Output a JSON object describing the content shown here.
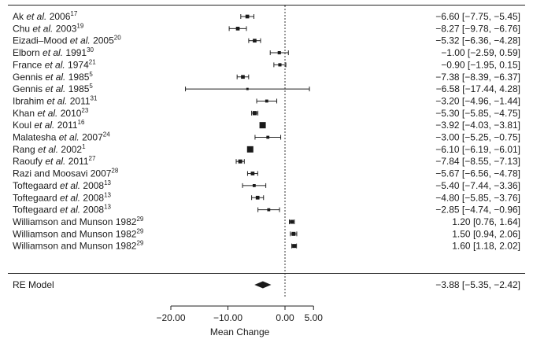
{
  "chart_data": {
    "type": "forest",
    "xlabel": "Mean Change",
    "xlim": [
      -20,
      5
    ],
    "xticks": [
      -20,
      -10,
      0,
      5
    ],
    "xtick_labels": [
      "−20.00",
      "−10.00",
      "0.00",
      "5.00"
    ],
    "reference_line": 0,
    "studies": [
      {
        "author": "Ak",
        "etal": true,
        "year": "2006",
        "ref": "17",
        "estimate": -6.6,
        "lower": -7.75,
        "upper": -5.45,
        "ci_text": "−6.60 [−7.75, −5.45]",
        "weight": 0.45
      },
      {
        "author": "Chu",
        "etal": true,
        "year": "2003",
        "ref": "19",
        "estimate": -8.27,
        "lower": -9.78,
        "upper": -6.76,
        "ci_text": "−8.27 [−9.78, −6.76]",
        "weight": 0.45
      },
      {
        "author": "Eizadi–Mood",
        "etal": true,
        "year": "2005",
        "ref": "20",
        "estimate": -5.32,
        "lower": -6.36,
        "upper": -4.28,
        "ci_text": "−5.32 [−6.36, −4.28]",
        "weight": 0.45
      },
      {
        "author": "Elborn",
        "etal": true,
        "year": "1991",
        "ref": "30",
        "estimate": -1.0,
        "lower": -2.59,
        "upper": 0.59,
        "ci_text": "−1.00 [−2.59, 0.59]",
        "weight": 0.35
      },
      {
        "author": "France",
        "etal": true,
        "year": "1974",
        "ref": "21",
        "estimate": -0.9,
        "lower": -1.95,
        "upper": 0.15,
        "ci_text": "−0.90 [−1.95, 0.15]",
        "weight": 0.35
      },
      {
        "author": "Gennis",
        "etal": true,
        "year": "1985",
        "ref": "5",
        "estimate": -7.38,
        "lower": -8.39,
        "upper": -6.37,
        "ci_text": "−7.38 [−8.39, −6.37]",
        "weight": 0.45
      },
      {
        "author": "Gennis",
        "etal": true,
        "year": "1985",
        "ref": "5",
        "estimate": -6.58,
        "lower": -17.44,
        "upper": 4.28,
        "ci_text": "−6.58 [−17.44, 4.28]",
        "weight": 0.15
      },
      {
        "author": "Ibrahim",
        "etal": true,
        "year": "2011",
        "ref": "31",
        "estimate": -3.2,
        "lower": -4.96,
        "upper": -1.44,
        "ci_text": "−3.20 [−4.96, −1.44]",
        "weight": 0.3
      },
      {
        "author": "Khan",
        "etal": true,
        "year": "2010",
        "ref": "23",
        "estimate": -5.3,
        "lower": -5.85,
        "upper": -4.75,
        "ci_text": "−5.30 [−5.85, −4.75]",
        "weight": 0.55
      },
      {
        "author": "Koul",
        "etal": true,
        "year": "2011",
        "ref": "16",
        "estimate": -3.92,
        "lower": -4.03,
        "upper": -3.81,
        "ci_text": "−3.92 [−4.03, −3.81]",
        "weight": 1.0
      },
      {
        "author": "Malatesha",
        "etal": true,
        "year": "2007",
        "ref": "24",
        "estimate": -3.0,
        "lower": -5.25,
        "upper": -0.75,
        "ci_text": "−3.00 [−5.25, −0.75]",
        "weight": 0.3
      },
      {
        "author": "Rang",
        "etal": true,
        "year": "2002",
        "ref": "1",
        "estimate": -6.1,
        "lower": -6.19,
        "upper": -6.01,
        "ci_text": "−6.10 [−6.19, −6.01]",
        "weight": 1.0
      },
      {
        "author": "Raoufy",
        "etal": true,
        "year": "2011",
        "ref": "27",
        "estimate": -7.84,
        "lower": -8.55,
        "upper": -7.13,
        "ci_text": "−7.84 [−8.55, −7.13]",
        "weight": 0.5
      },
      {
        "author": "Razi and Moosavi",
        "etal": false,
        "year": "2007",
        "ref": "28",
        "estimate": -5.67,
        "lower": -6.56,
        "upper": -4.78,
        "ci_text": "−5.67 [−6.56, −4.78]",
        "weight": 0.45
      },
      {
        "author": "Toftegaard",
        "etal": true,
        "year": "2008",
        "ref": "13",
        "estimate": -5.4,
        "lower": -7.44,
        "upper": -3.36,
        "ci_text": "−5.40 [−7.44, −3.36]",
        "weight": 0.3
      },
      {
        "author": "Toftegaard",
        "etal": true,
        "year": "2008",
        "ref": "13",
        "estimate": -4.8,
        "lower": -5.85,
        "upper": -3.76,
        "ci_text": "−4.80 [−5.85, −3.76]",
        "weight": 0.45
      },
      {
        "author": "Toftegaard",
        "etal": true,
        "year": "2008",
        "ref": "13",
        "estimate": -2.85,
        "lower": -4.74,
        "upper": -0.96,
        "ci_text": "−2.85 [−4.74, −0.96]",
        "weight": 0.3
      },
      {
        "author": "Williamson and Munson",
        "etal": false,
        "year": "1982",
        "ref": "29",
        "estimate": 1.2,
        "lower": 0.76,
        "upper": 1.64,
        "ci_text": "1.20 [0.76, 1.64]",
        "weight": 0.5
      },
      {
        "author": "Williamson and Munson",
        "etal": false,
        "year": "1982",
        "ref": "29",
        "estimate": 1.5,
        "lower": 0.94,
        "upper": 2.06,
        "ci_text": "1.50 [0.94, 2.06]",
        "weight": 0.5
      },
      {
        "author": "Williamson and Munson",
        "etal": false,
        "year": "1982",
        "ref": "29",
        "estimate": 1.6,
        "lower": 1.18,
        "upper": 2.02,
        "ci_text": "1.60 [1.18, 2.02]",
        "weight": 0.5
      }
    ],
    "summary": {
      "label": "RE Model",
      "estimate": -3.88,
      "lower": -5.35,
      "upper": -2.42,
      "ci_text": "−3.88 [−5.35, −2.42]"
    }
  }
}
